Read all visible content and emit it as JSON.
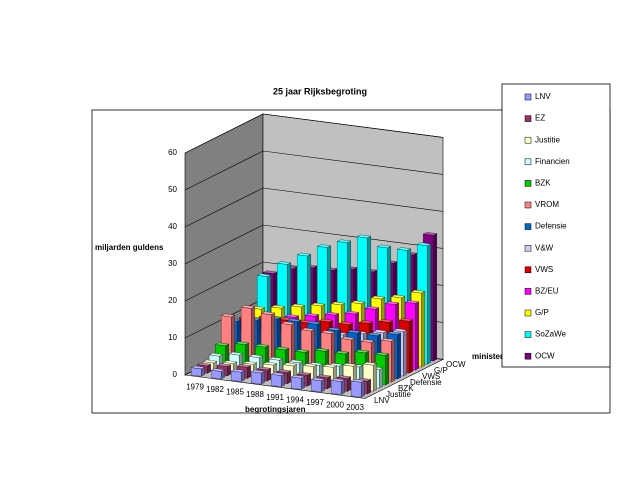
{
  "chart_data": {
    "type": "bar3d",
    "title": "25 jaar Rijksbegroting",
    "y_label": "miljarden guldens",
    "x_label": "begrotingsjaren",
    "z_label": "ministeries",
    "categories": [
      "1979",
      "1982",
      "1985",
      "1988",
      "1991",
      "1994",
      "1997",
      "2000",
      "2003"
    ],
    "ylim": [
      0,
      60
    ],
    "yticks": [
      0,
      10,
      20,
      30,
      40,
      50,
      60
    ],
    "grid": true,
    "legend": "right",
    "series": [
      {
        "name": "LNV",
        "color": "#9999ff",
        "values": [
          2,
          2,
          2.5,
          3,
          3,
          3,
          3,
          3.5,
          4
        ]
      },
      {
        "name": "EZ",
        "color": "#993366",
        "values": [
          2,
          2.5,
          3,
          3,
          3,
          3,
          3,
          3.5,
          3.5
        ]
      },
      {
        "name": "Justitie",
        "color": "#ffffcc",
        "values": [
          2,
          2.5,
          3,
          3.5,
          4,
          4.5,
          5,
          6,
          7
        ]
      },
      {
        "name": "Financien",
        "color": "#ccffff",
        "values": [
          3,
          4,
          4,
          4,
          4,
          4,
          4.5,
          5,
          5
        ]
      },
      {
        "name": "BZK",
        "color": "#00cc00",
        "values": [
          5,
          6,
          6,
          6,
          6,
          7,
          7,
          8,
          8
        ]
      },
      {
        "name": "VROM",
        "color": "#ff8080",
        "values": [
          12,
          15,
          14,
          12,
          11,
          11,
          10,
          10,
          11
        ]
      },
      {
        "name": "Defensie",
        "color": "#0066cc",
        "values": [
          10,
          11,
          12,
          12,
          12,
          11,
          11,
          11,
          12
        ]
      },
      {
        "name": "V&W",
        "color": "#ccccff",
        "values": [
          6,
          7,
          7,
          8,
          8,
          9,
          10,
          11,
          12
        ]
      },
      {
        "name": "VWS",
        "color": "#dd0000",
        "values": [
          9,
          10,
          10,
          10,
          11,
          11,
          12,
          13,
          14
        ]
      },
      {
        "name": "BZ/EU",
        "color": "#ff00ff",
        "values": [
          8,
          9,
          10,
          11,
          12,
          13,
          15,
          17,
          18
        ]
      },
      {
        "name": "G/P",
        "color": "#ffff00",
        "values": [
          10,
          11,
          12,
          13,
          14,
          15,
          17,
          18,
          20
        ]
      },
      {
        "name": "SoZaWe",
        "color": "#00ffff",
        "values": [
          18,
          22,
          25,
          28,
          30,
          32,
          30,
          30,
          32
        ]
      },
      {
        "name": "OCW",
        "color": "#800080",
        "values": [
          18,
          20,
          21,
          21,
          22,
          22,
          25,
          28,
          34
        ]
      }
    ]
  }
}
